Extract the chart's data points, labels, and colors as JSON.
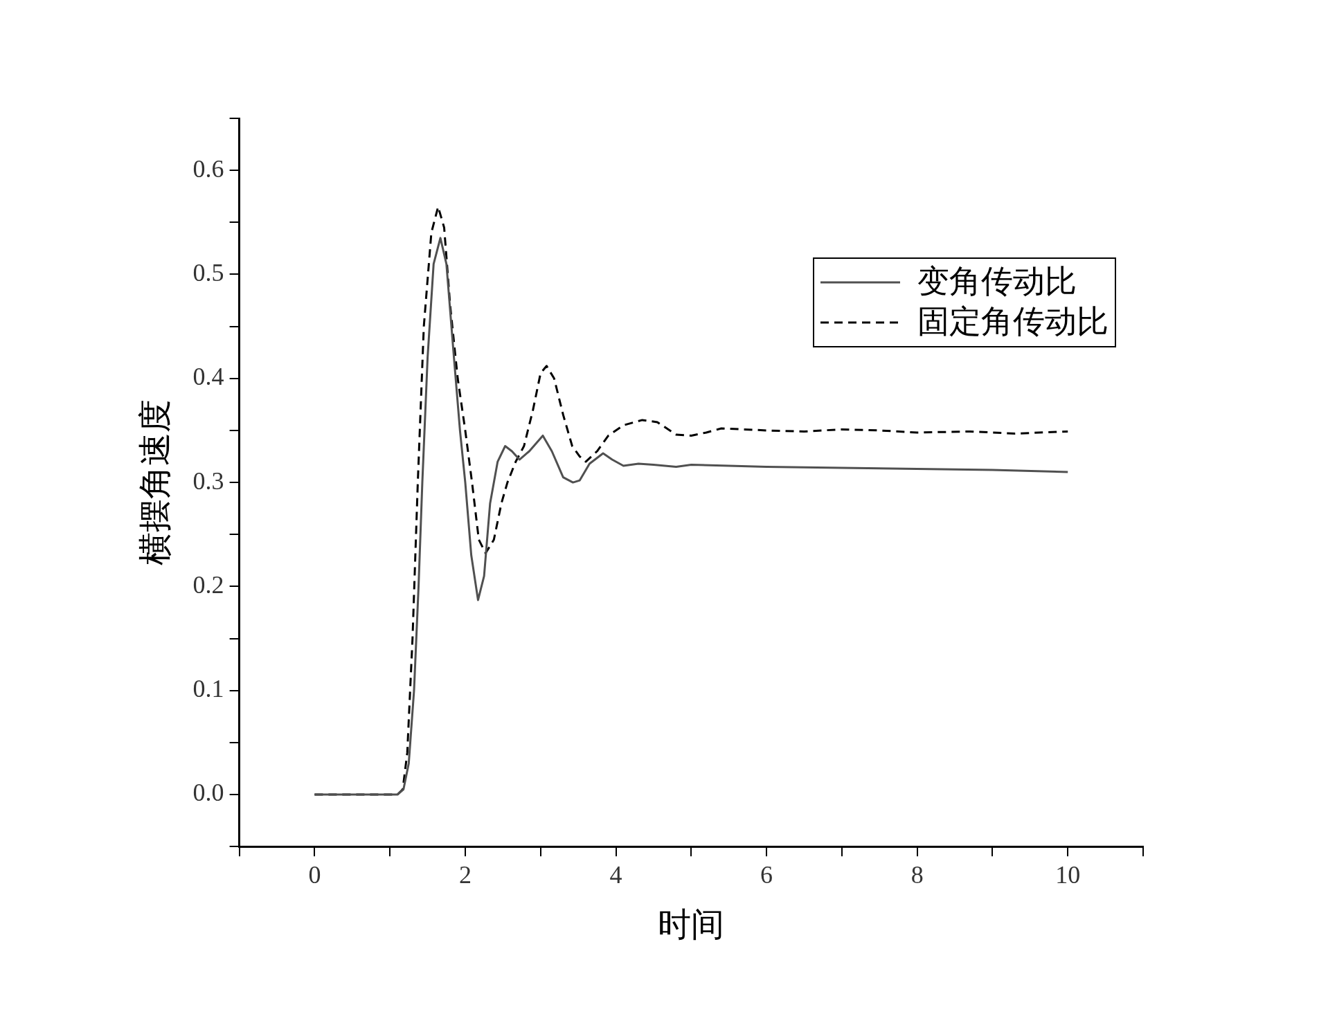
{
  "chart_data": {
    "type": "line",
    "xlabel": "时间",
    "ylabel": "横摆角速度",
    "xlim": [
      -1,
      11
    ],
    "xticks": [
      {
        "value": -1,
        "label": null
      },
      0,
      {
        "value": 1,
        "label": null
      },
      2,
      {
        "value": 3,
        "label": null
      },
      4,
      {
        "value": 5,
        "label": null
      },
      6,
      {
        "value": 7,
        "label": null
      },
      8,
      {
        "value": 9,
        "label": null
      },
      10,
      {
        "value": 11,
        "label": null
      }
    ],
    "ylim": [
      -0.05,
      0.65
    ],
    "yticks": [
      {
        "value": -0.05,
        "label": null
      },
      {
        "value": 0,
        "label": "0.0"
      },
      {
        "value": 0.05,
        "label": null
      },
      0.1,
      {
        "value": 0.15,
        "label": null
      },
      0.2,
      {
        "value": 0.25,
        "label": null
      },
      0.3,
      {
        "value": 0.35,
        "label": null
      },
      0.4,
      {
        "value": 0.45,
        "label": null
      },
      0.5,
      {
        "value": 0.55,
        "label": null
      },
      0.6,
      {
        "value": 0.65,
        "label": null
      }
    ],
    "grid": false,
    "legend": "top right",
    "marker": "none",
    "series": [
      {
        "name": "变角传动比",
        "color": "#505050",
        "line_style": "solid",
        "x": [
          0,
          1.1,
          1.18,
          1.25,
          1.32,
          1.38,
          1.43,
          1.5,
          1.58,
          1.67,
          1.75,
          1.85,
          1.93,
          2.0,
          2.08,
          2.17,
          2.25,
          2.33,
          2.43,
          2.53,
          2.62,
          2.72,
          2.85,
          3.03,
          3.15,
          3.3,
          3.43,
          3.52,
          3.65,
          3.83,
          3.95,
          4.1,
          4.3,
          4.5,
          4.8,
          5.0,
          5.5,
          6,
          7,
          8,
          9,
          10
        ],
        "values": [
          0,
          0,
          0.005,
          0.03,
          0.1,
          0.2,
          0.3,
          0.42,
          0.51,
          0.535,
          0.51,
          0.42,
          0.35,
          0.3,
          0.23,
          0.187,
          0.21,
          0.28,
          0.32,
          0.335,
          0.33,
          0.322,
          0.33,
          0.345,
          0.33,
          0.305,
          0.3,
          0.302,
          0.318,
          0.328,
          0.322,
          0.316,
          0.318,
          0.317,
          0.315,
          0.317,
          0.316,
          0.315,
          0.314,
          0.313,
          0.312,
          0.31
        ]
      },
      {
        "name": "固定角传动比",
        "color": "#000000",
        "line_style": "dashed",
        "x": [
          0,
          1.1,
          1.17,
          1.23,
          1.3,
          1.37,
          1.45,
          1.55,
          1.64,
          1.72,
          1.8,
          1.9,
          2.0,
          2.09,
          2.18,
          2.27,
          2.38,
          2.48,
          2.56,
          2.67,
          2.78,
          2.9,
          3.0,
          3.08,
          3.18,
          3.3,
          3.42,
          3.52,
          3.6,
          3.75,
          3.9,
          4.1,
          4.35,
          4.55,
          4.8,
          5.0,
          5.2,
          5.4,
          6,
          6.5,
          7,
          7.5,
          8,
          8.7,
          9.3,
          10
        ],
        "values": [
          0,
          0,
          0.005,
          0.04,
          0.15,
          0.3,
          0.45,
          0.54,
          0.565,
          0.545,
          0.47,
          0.4,
          0.35,
          0.3,
          0.245,
          0.232,
          0.245,
          0.28,
          0.3,
          0.32,
          0.335,
          0.37,
          0.405,
          0.412,
          0.4,
          0.365,
          0.335,
          0.325,
          0.32,
          0.33,
          0.345,
          0.355,
          0.36,
          0.358,
          0.346,
          0.345,
          0.348,
          0.352,
          0.35,
          0.349,
          0.351,
          0.35,
          0.348,
          0.349,
          0.347,
          0.349
        ]
      }
    ]
  }
}
